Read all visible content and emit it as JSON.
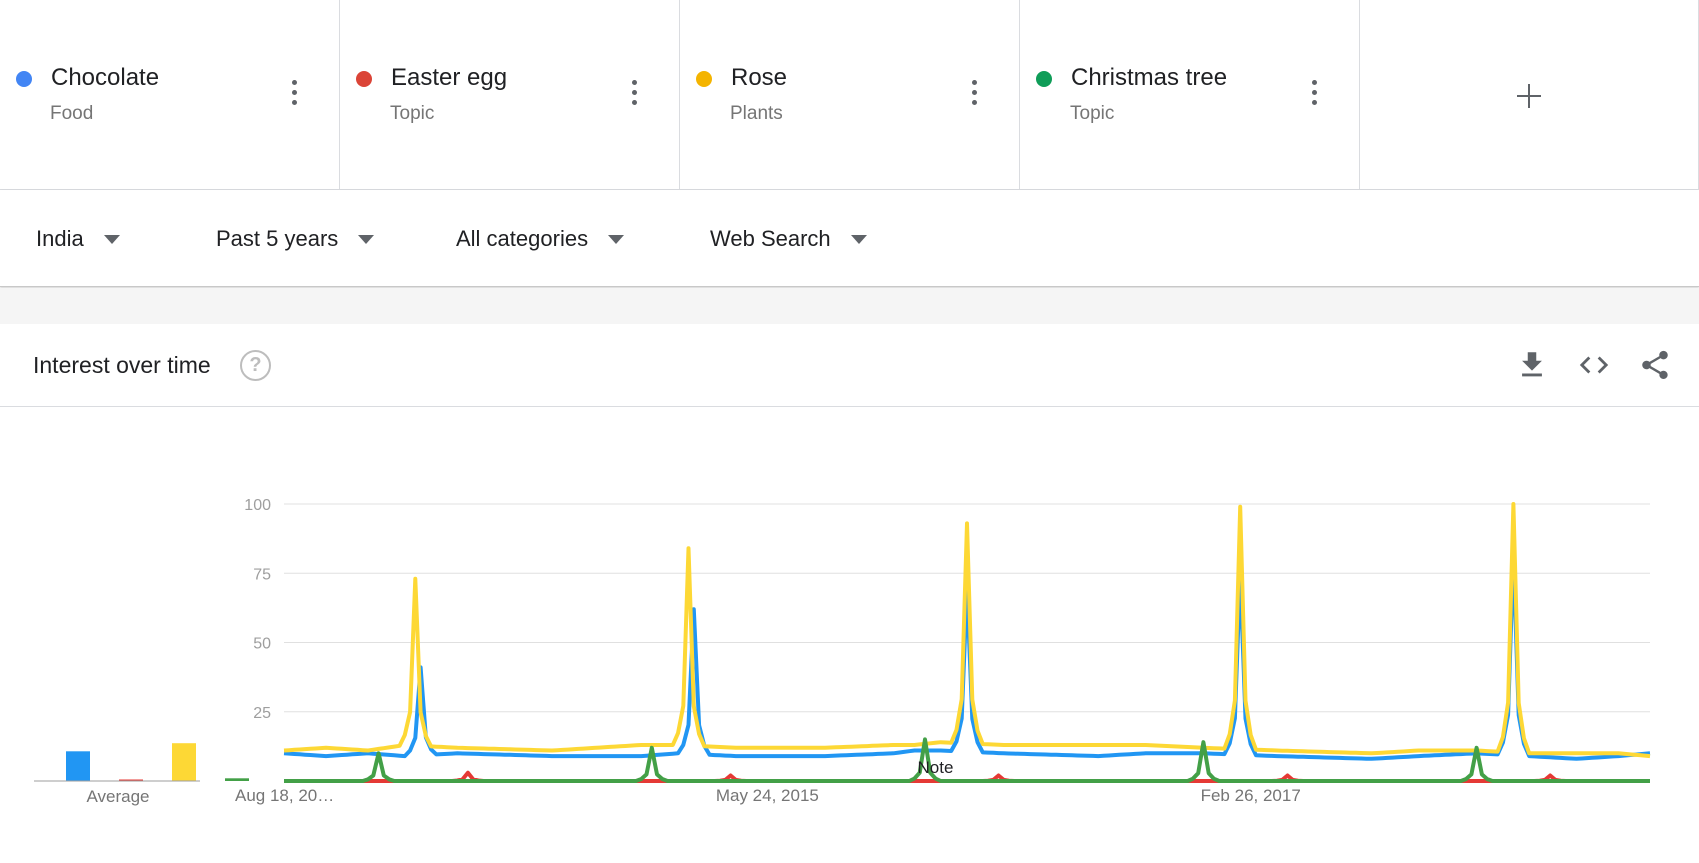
{
  "terms": [
    {
      "name": "Chocolate",
      "category": "Food",
      "color": "#4285f4"
    },
    {
      "name": "Easter egg",
      "category": "Topic",
      "color": "#db4437"
    },
    {
      "name": "Rose",
      "category": "Plants",
      "color": "#f4b400"
    },
    {
      "name": "Christmas tree",
      "category": "Topic",
      "color": "#0f9d58"
    }
  ],
  "add_term_icon": "plus-icon",
  "term_menu_icon": "more-vertical-icon",
  "filters": {
    "region": "India",
    "time_range": "Past 5 years",
    "category": "All categories",
    "search_type": "Web Search"
  },
  "card": {
    "title": "Interest over time",
    "help_icon": "?",
    "actions": [
      "download-icon",
      "embed-code-icon",
      "share-icon"
    ]
  },
  "average_label": "Average",
  "note_label": "Note",
  "chart_data": [
    {
      "type": "bar",
      "title": "",
      "xlabel": "Average",
      "categories": [
        "Chocolate",
        "Easter egg",
        "Rose",
        "Christmas tree"
      ],
      "values": [
        11,
        0,
        14,
        1
      ],
      "colors": [
        "#2196f3",
        "#e53935",
        "#fdd835",
        "#43a047"
      ],
      "ylim": [
        0,
        100
      ]
    },
    {
      "type": "line",
      "title": "",
      "xlabel": "",
      "ylabel": "",
      "ylim": [
        0,
        100
      ],
      "yticks": [
        25,
        50,
        75,
        100
      ],
      "xlim": [
        "2013-08-18",
        "2018-08-12"
      ],
      "xtick_labels": [
        {
          "label": "Aug 18, 20…",
          "date": "2013-08-18"
        },
        {
          "label": "May 24, 2015",
          "date": "2015-05-24"
        },
        {
          "label": "Feb 26, 2017",
          "date": "2017-02-26"
        }
      ],
      "grid": true,
      "annotations": [
        {
          "text": "Note",
          "date": "2016-01-03"
        }
      ],
      "series": [
        {
          "name": "Chocolate",
          "color": "#2196f3",
          "baseline": [
            [
              "2013-08-18",
              10
            ],
            [
              "2013-10-13",
              9
            ],
            [
              "2013-12-08",
              10
            ],
            [
              "2014-01-26",
              9
            ],
            [
              "2014-04-06",
              10
            ],
            [
              "2014-08-10",
              9
            ],
            [
              "2014-12-07",
              9
            ],
            [
              "2015-01-25",
              10
            ],
            [
              "2015-04-12",
              9
            ],
            [
              "2015-08-09",
              9
            ],
            [
              "2015-11-08",
              10
            ],
            [
              "2015-12-06",
              11
            ],
            [
              "2016-01-10",
              11
            ],
            [
              "2016-04-03",
              10
            ],
            [
              "2016-08-07",
              9
            ],
            [
              "2016-10-09",
              10
            ],
            [
              "2016-12-25",
              10
            ],
            [
              "2017-04-02",
              9
            ],
            [
              "2017-08-06",
              8
            ],
            [
              "2017-10-08",
              9
            ],
            [
              "2017-12-24",
              10
            ],
            [
              "2018-03-04",
              9
            ],
            [
              "2018-05-06",
              8
            ],
            [
              "2018-07-01",
              9
            ],
            [
              "2018-08-12",
              10
            ]
          ],
          "peaks": [
            {
              "date": "2014-02-16",
              "value": 41
            },
            {
              "date": "2015-02-15",
              "value": 62
            },
            {
              "date": "2016-02-14",
              "value": 70
            },
            {
              "date": "2017-02-12",
              "value": 75
            },
            {
              "date": "2018-02-11",
              "value": 82
            }
          ]
        },
        {
          "name": "Easter egg",
          "color": "#e53935",
          "baseline": [
            [
              "2013-08-18",
              0
            ],
            [
              "2018-08-12",
              0
            ]
          ],
          "peaks": [
            {
              "date": "2014-04-20",
              "value": 3
            },
            {
              "date": "2015-04-05",
              "value": 2
            },
            {
              "date": "2016-03-27",
              "value": 2
            },
            {
              "date": "2017-04-16",
              "value": 2
            },
            {
              "date": "2018-04-01",
              "value": 2
            }
          ]
        },
        {
          "name": "Rose",
          "color": "#fdd835",
          "baseline": [
            [
              "2013-08-18",
              11
            ],
            [
              "2013-10-13",
              12
            ],
            [
              "2013-12-08",
              11
            ],
            [
              "2014-01-26",
              13
            ],
            [
              "2014-04-06",
              12
            ],
            [
              "2014-08-10",
              11
            ],
            [
              "2014-12-07",
              13
            ],
            [
              "2015-01-25",
              13
            ],
            [
              "2015-04-12",
              12
            ],
            [
              "2015-08-09",
              12
            ],
            [
              "2015-11-08",
              13
            ],
            [
              "2015-12-06",
              13
            ],
            [
              "2016-01-10",
              14
            ],
            [
              "2016-04-03",
              13
            ],
            [
              "2016-08-07",
              13
            ],
            [
              "2016-10-09",
              13
            ],
            [
              "2016-12-25",
              12
            ],
            [
              "2017-04-02",
              11
            ],
            [
              "2017-08-06",
              10
            ],
            [
              "2017-10-08",
              11
            ],
            [
              "2017-12-24",
              11
            ],
            [
              "2018-03-04",
              10
            ],
            [
              "2018-05-06",
              10
            ],
            [
              "2018-07-01",
              10
            ],
            [
              "2018-08-12",
              9
            ]
          ],
          "peaks": [
            {
              "date": "2014-02-09",
              "value": 73
            },
            {
              "date": "2015-02-08",
              "value": 84
            },
            {
              "date": "2016-02-14",
              "value": 93
            },
            {
              "date": "2017-02-12",
              "value": 99
            },
            {
              "date": "2018-02-11",
              "value": 100
            }
          ]
        },
        {
          "name": "Christmas tree",
          "color": "#43a047",
          "baseline": [
            [
              "2013-08-18",
              0
            ],
            [
              "2018-08-12",
              0
            ]
          ],
          "peaks": [
            {
              "date": "2013-12-22",
              "value": 10
            },
            {
              "date": "2014-12-21",
              "value": 12
            },
            {
              "date": "2015-12-20",
              "value": 15
            },
            {
              "date": "2016-12-25",
              "value": 14
            },
            {
              "date": "2017-12-24",
              "value": 12
            }
          ]
        }
      ]
    }
  ]
}
